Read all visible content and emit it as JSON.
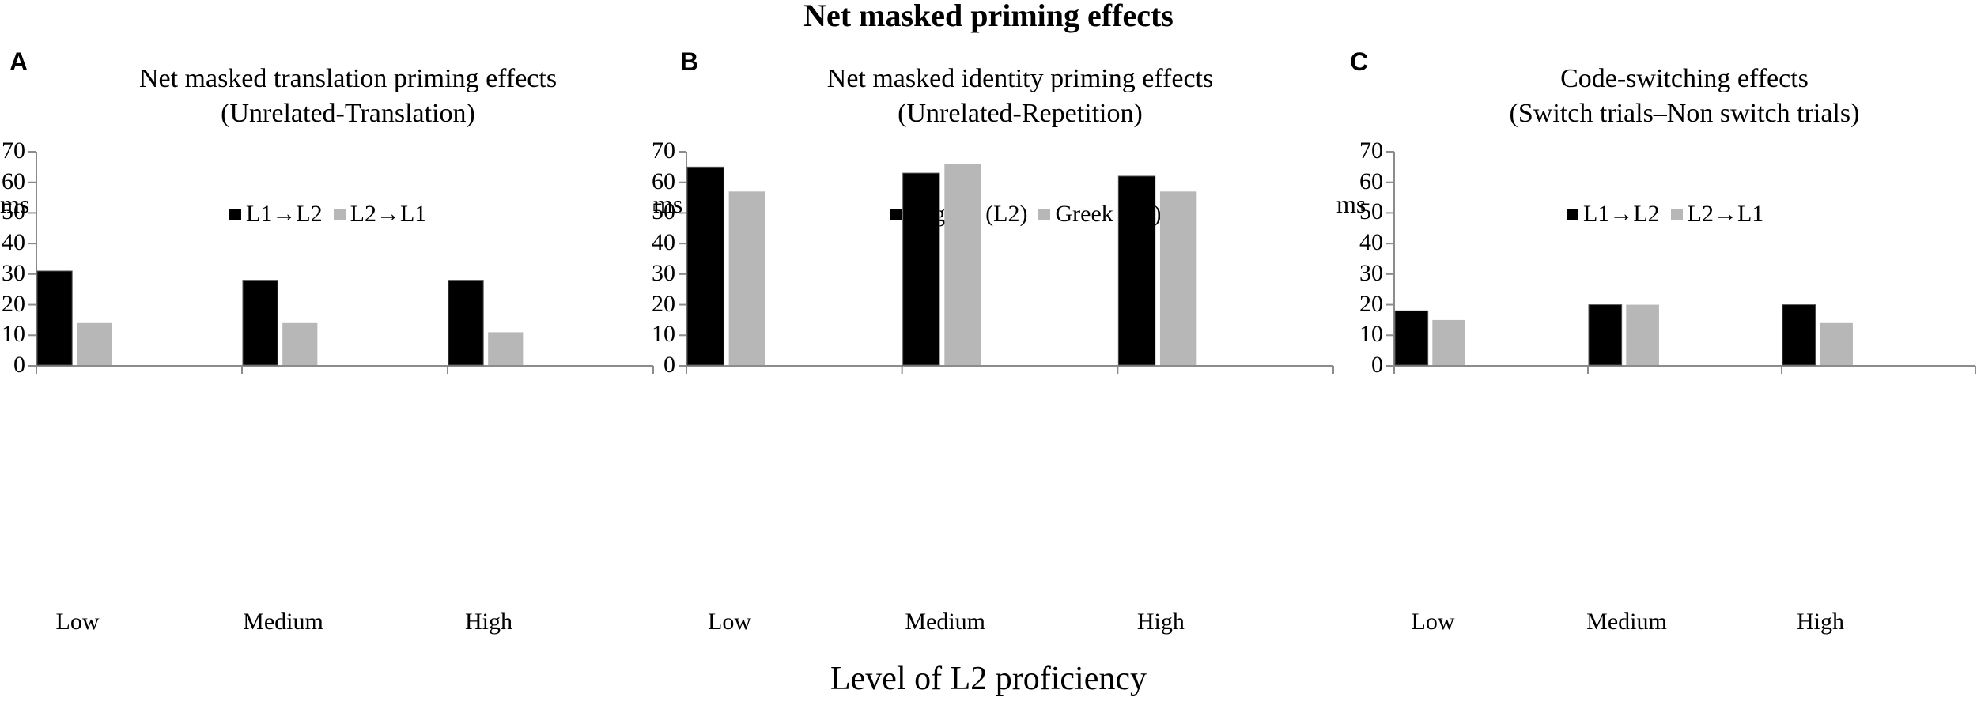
{
  "figure": {
    "title": "Net masked priming effects",
    "xaxis_title": "Level of L2 proficiency",
    "colors": {
      "series1": "#000000",
      "series2": "#b7b7b7",
      "axis": "#8c8c8c"
    }
  },
  "panels": [
    {
      "letter": "A",
      "title_line1": "Net masked translation priming effects",
      "title_line2": "(Unrelated-Translation)",
      "ylabel": "ms",
      "legend": [
        "L1→L2",
        "L2→L1"
      ],
      "yticks": [
        "0",
        "10",
        "20",
        "30",
        "40",
        "50",
        "60",
        "70"
      ],
      "categories": [
        "Low",
        "Medium",
        "High"
      ]
    },
    {
      "letter": "B",
      "title_line1": "Net masked identity priming effects",
      "title_line2": "(Unrelated-Repetition)",
      "ylabel": "ms",
      "legend": [
        "English (L2)",
        "Greek (L1)"
      ],
      "yticks": [
        "0",
        "10",
        "20",
        "30",
        "40",
        "50",
        "60",
        "70"
      ],
      "categories": [
        "Low",
        "Medium",
        "High"
      ]
    },
    {
      "letter": "C",
      "title_line1": "Code-switching effects",
      "title_line2": "(Switch trials–Non switch trials)",
      "ylabel": "ms",
      "legend": [
        "L1→L2",
        "L2→L1"
      ],
      "yticks": [
        "0",
        "10",
        "20",
        "30",
        "40",
        "50",
        "60",
        "70"
      ],
      "categories": [
        "Low",
        "Medium",
        "High"
      ]
    }
  ],
  "chart_data": [
    {
      "type": "bar",
      "title": "Net masked translation priming effects (Unrelated-Translation)",
      "panel": "A",
      "xlabel": "Level of L2 proficiency",
      "ylabel": "ms",
      "ylim": [
        0,
        70
      ],
      "yticks": [
        0,
        10,
        20,
        30,
        40,
        50,
        60,
        70
      ],
      "grid": false,
      "legend_position": "top",
      "categories": [
        "Low",
        "Medium",
        "High"
      ],
      "series": [
        {
          "name": "L1→L2",
          "color": "#000000",
          "values": [
            31,
            28,
            28
          ]
        },
        {
          "name": "L2→L1",
          "color": "#b7b7b7",
          "values": [
            14,
            14,
            11
          ]
        }
      ]
    },
    {
      "type": "bar",
      "title": "Net masked identity priming effects (Unrelated-Repetition)",
      "panel": "B",
      "xlabel": "Level of L2 proficiency",
      "ylabel": "ms",
      "ylim": [
        0,
        70
      ],
      "yticks": [
        0,
        10,
        20,
        30,
        40,
        50,
        60,
        70
      ],
      "grid": false,
      "legend_position": "top",
      "categories": [
        "Low",
        "Medium",
        "High"
      ],
      "series": [
        {
          "name": "English (L2)",
          "color": "#000000",
          "values": [
            65,
            63,
            62
          ]
        },
        {
          "name": "Greek (L1)",
          "color": "#b7b7b7",
          "values": [
            57,
            66,
            57
          ]
        }
      ]
    },
    {
      "type": "bar",
      "title": "Code-switching effects (Switch trials–Non switch trials)",
      "panel": "C",
      "xlabel": "Level of L2 proficiency",
      "ylabel": "ms",
      "ylim": [
        0,
        70
      ],
      "yticks": [
        0,
        10,
        20,
        30,
        40,
        50,
        60,
        70
      ],
      "grid": false,
      "legend_position": "top",
      "categories": [
        "Low",
        "Medium",
        "High"
      ],
      "series": [
        {
          "name": "L1→L2",
          "color": "#000000",
          "values": [
            18,
            20,
            20
          ]
        },
        {
          "name": "L2→L1",
          "color": "#b7b7b7",
          "values": [
            15,
            20,
            14
          ]
        }
      ]
    }
  ]
}
